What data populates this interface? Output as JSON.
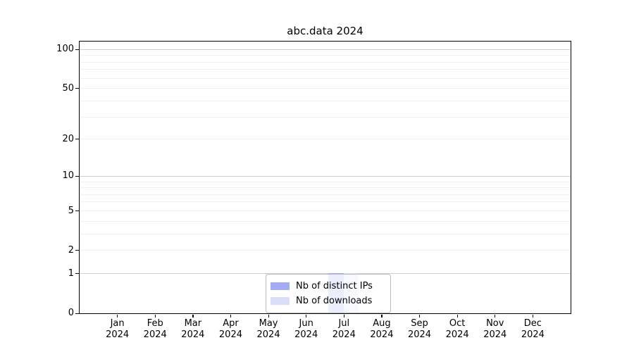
{
  "chart_data": {
    "type": "bar",
    "title": "abc.data 2024",
    "year": "2024",
    "categories": [
      "Jan",
      "Feb",
      "Mar",
      "Apr",
      "May",
      "Jun",
      "Jul",
      "Aug",
      "Sep",
      "Oct",
      "Nov",
      "Dec"
    ],
    "series": [
      {
        "name": "Nb of distinct IPs",
        "color": "#a5abf2",
        "values": [
          0,
          0,
          0,
          0,
          0,
          0,
          1,
          0,
          0,
          0,
          0,
          0
        ]
      },
      {
        "name": "Nb of downloads",
        "color": "#dbdef8",
        "values": [
          0,
          0,
          0,
          0,
          0,
          0,
          1,
          0,
          0,
          0,
          0,
          0
        ]
      }
    ],
    "xlabel": "",
    "ylabel": "",
    "y_axis": {
      "scale": "log1p",
      "ylim": [
        0,
        115
      ],
      "labeled_ticks": [
        100,
        50,
        20,
        10,
        5,
        2,
        1,
        0
      ],
      "major_gridlines": [
        1,
        10,
        100
      ],
      "minor_gridlines": [
        2,
        3,
        4,
        5,
        6,
        7,
        8,
        9,
        20,
        30,
        40,
        50,
        60,
        70,
        80,
        90
      ]
    },
    "legend": {
      "position": "lower center",
      "entries": [
        "Nb of distinct IPs",
        "Nb of downloads"
      ]
    },
    "grid": true,
    "bar_width_fraction": 0.4
  }
}
